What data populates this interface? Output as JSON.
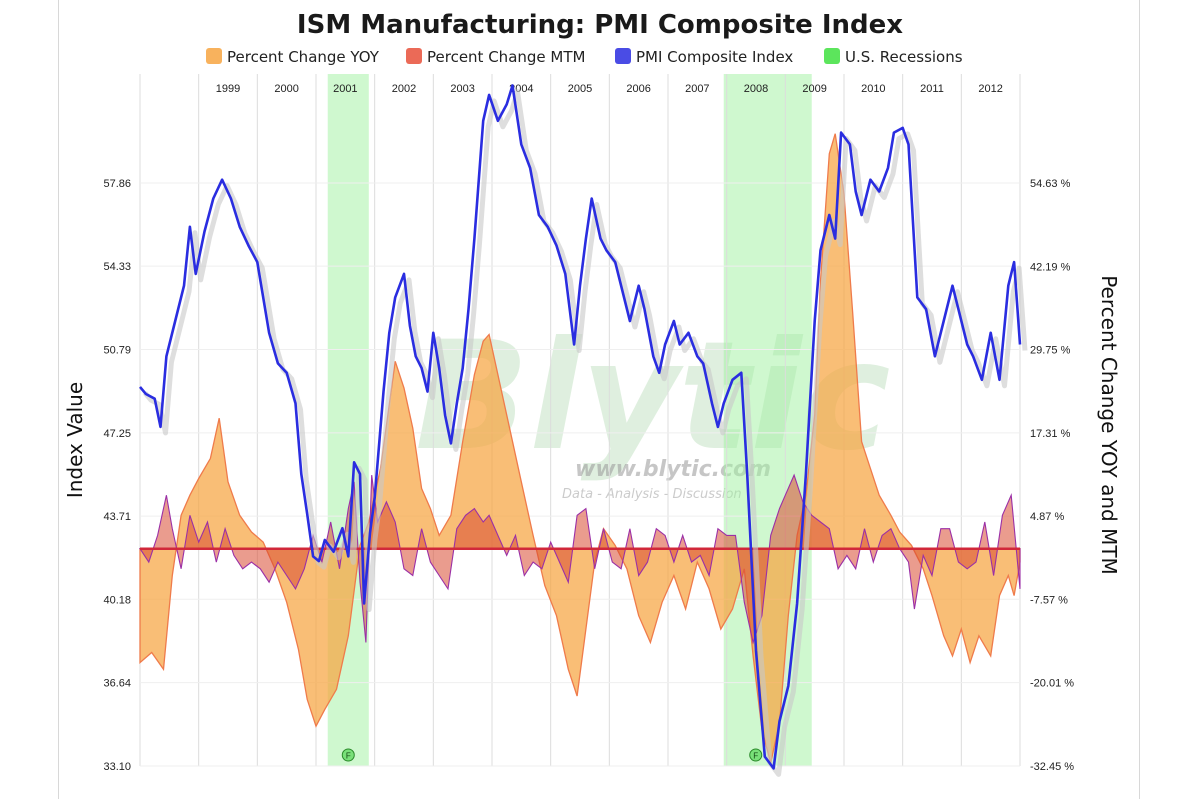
{
  "chart_data": {
    "type": "line",
    "title": "ISM Manufacturing: PMI Composite Index",
    "legend": {
      "placement": "top",
      "entries": [
        {
          "name": "Percent Change YOY",
          "color": "#f7a541"
        },
        {
          "name": "Percent Change MTM",
          "color": "#e8503a"
        },
        {
          "name": "PMI Composite Index",
          "color": "#2a2de0"
        },
        {
          "name": "U.S. Recessions",
          "color": "#40e040"
        }
      ]
    },
    "ylabel_left": "Index Value",
    "ylabel_right": "Percent Change YOY and MTM",
    "y_left_ticks": [
      "57.86",
      "54.33",
      "50.79",
      "47.25",
      "43.71",
      "40.18",
      "36.64",
      "33.10"
    ],
    "y_right_ticks": [
      "54.63 %",
      "42.19 %",
      "29.75 %",
      "17.31 %",
      "4.87 %",
      "-7.57 %",
      "-20.01 %",
      "-32.45 %"
    ],
    "y_left_range": [
      33.1,
      57.86
    ],
    "y_right_range": [
      -32.45,
      54.63
    ],
    "x_range": [
      1998.0,
      2013.0
    ],
    "year_labels": [
      "1999",
      "2000",
      "2001",
      "2002",
      "2003",
      "2004",
      "2005",
      "2006",
      "2007",
      "2008",
      "2009",
      "2010",
      "2011",
      "2012"
    ],
    "grid": true,
    "recessions": [
      {
        "start": 2001.2,
        "end": 2001.9
      },
      {
        "start": 2007.95,
        "end": 2009.45
      }
    ],
    "recession_markers": [
      "F",
      "F"
    ],
    "pmi": [
      [
        1998.0,
        49.2
      ],
      [
        1998.1,
        48.9
      ],
      [
        1998.25,
        48.7
      ],
      [
        1998.35,
        47.5
      ],
      [
        1998.45,
        50.5
      ],
      [
        1998.6,
        52.0
      ],
      [
        1998.75,
        53.5
      ],
      [
        1998.85,
        56.0
      ],
      [
        1998.95,
        54.0
      ],
      [
        1999.1,
        55.8
      ],
      [
        1999.25,
        57.2
      ],
      [
        1999.4,
        58.0
      ],
      [
        1999.55,
        57.2
      ],
      [
        1999.7,
        56.0
      ],
      [
        1999.85,
        55.2
      ],
      [
        2000.0,
        54.5
      ],
      [
        2000.1,
        53.0
      ],
      [
        2000.2,
        51.5
      ],
      [
        2000.35,
        50.2
      ],
      [
        2000.5,
        49.8
      ],
      [
        2000.65,
        48.5
      ],
      [
        2000.75,
        45.5
      ],
      [
        2000.85,
        43.8
      ],
      [
        2000.95,
        42.0
      ],
      [
        2001.05,
        41.8
      ],
      [
        2001.15,
        42.7
      ],
      [
        2001.3,
        42.2
      ],
      [
        2001.45,
        43.2
      ],
      [
        2001.55,
        42.0
      ],
      [
        2001.65,
        46.0
      ],
      [
        2001.75,
        45.5
      ],
      [
        2001.82,
        40.0
      ],
      [
        2001.92,
        43.0
      ],
      [
        2002.0,
        44.5
      ],
      [
        2002.15,
        49.0
      ],
      [
        2002.25,
        51.5
      ],
      [
        2002.35,
        53.0
      ],
      [
        2002.5,
        54.0
      ],
      [
        2002.6,
        51.8
      ],
      [
        2002.7,
        50.5
      ],
      [
        2002.8,
        50.0
      ],
      [
        2002.9,
        49.0
      ],
      [
        2003.0,
        51.5
      ],
      [
        2003.1,
        50.0
      ],
      [
        2003.2,
        48.0
      ],
      [
        2003.3,
        46.8
      ],
      [
        2003.4,
        48.5
      ],
      [
        2003.5,
        50.0
      ],
      [
        2003.6,
        52.5
      ],
      [
        2003.7,
        55.5
      ],
      [
        2003.85,
        60.5
      ],
      [
        2003.95,
        61.6
      ],
      [
        2004.1,
        60.5
      ],
      [
        2004.25,
        61.2
      ],
      [
        2004.35,
        62.0
      ],
      [
        2004.5,
        59.5
      ],
      [
        2004.65,
        58.5
      ],
      [
        2004.8,
        56.5
      ],
      [
        2004.95,
        56.0
      ],
      [
        2005.1,
        55.2
      ],
      [
        2005.25,
        54.0
      ],
      [
        2005.4,
        51.0
      ],
      [
        2005.5,
        53.5
      ],
      [
        2005.6,
        55.5
      ],
      [
        2005.7,
        57.2
      ],
      [
        2005.85,
        55.5
      ],
      [
        2005.95,
        55.0
      ],
      [
        2006.1,
        54.5
      ],
      [
        2006.2,
        53.5
      ],
      [
        2006.35,
        52.0
      ],
      [
        2006.5,
        53.5
      ],
      [
        2006.6,
        52.5
      ],
      [
        2006.75,
        50.5
      ],
      [
        2006.85,
        49.8
      ],
      [
        2006.95,
        51.0
      ],
      [
        2007.1,
        52.0
      ],
      [
        2007.2,
        51.0
      ],
      [
        2007.35,
        51.5
      ],
      [
        2007.5,
        50.5
      ],
      [
        2007.6,
        50.2
      ],
      [
        2007.75,
        48.5
      ],
      [
        2007.85,
        47.5
      ],
      [
        2007.95,
        48.5
      ],
      [
        2008.1,
        49.5
      ],
      [
        2008.25,
        49.8
      ],
      [
        2008.35,
        45.5
      ],
      [
        2008.5,
        38.0
      ],
      [
        2008.65,
        33.5
      ],
      [
        2008.8,
        33.0
      ],
      [
        2008.9,
        35.0
      ],
      [
        2009.05,
        36.5
      ],
      [
        2009.2,
        40.0
      ],
      [
        2009.35,
        45.5
      ],
      [
        2009.5,
        52.0
      ],
      [
        2009.6,
        55.0
      ],
      [
        2009.75,
        56.5
      ],
      [
        2009.85,
        55.5
      ],
      [
        2009.95,
        60.0
      ],
      [
        2010.1,
        59.5
      ],
      [
        2010.2,
        57.5
      ],
      [
        2010.3,
        56.5
      ],
      [
        2010.45,
        58.0
      ],
      [
        2010.6,
        57.5
      ],
      [
        2010.75,
        58.5
      ],
      [
        2010.85,
        60.0
      ],
      [
        2011.0,
        60.2
      ],
      [
        2011.1,
        59.5
      ],
      [
        2011.25,
        53.0
      ],
      [
        2011.4,
        52.5
      ],
      [
        2011.55,
        50.5
      ],
      [
        2011.7,
        52.0
      ],
      [
        2011.85,
        53.5
      ],
      [
        2011.95,
        52.5
      ],
      [
        2012.1,
        51.0
      ],
      [
        2012.2,
        50.5
      ],
      [
        2012.35,
        49.5
      ],
      [
        2012.5,
        51.5
      ],
      [
        2012.65,
        49.5
      ],
      [
        2012.8,
        53.5
      ],
      [
        2012.9,
        54.5
      ],
      [
        2013.0,
        51.0
      ]
    ],
    "yoy": [
      [
        1998.0,
        -17.0
      ],
      [
        1998.2,
        -15.5
      ],
      [
        1998.4,
        -18.0
      ],
      [
        1998.55,
        -4.0
      ],
      [
        1998.7,
        5.0
      ],
      [
        1998.85,
        8.0
      ],
      [
        1999.0,
        10.5
      ],
      [
        1999.2,
        13.5
      ],
      [
        1999.35,
        19.5
      ],
      [
        1999.5,
        10.0
      ],
      [
        1999.7,
        5.0
      ],
      [
        1999.9,
        2.5
      ],
      [
        2000.1,
        1.0
      ],
      [
        2000.3,
        -3.0
      ],
      [
        2000.5,
        -8.0
      ],
      [
        2000.7,
        -15.0
      ],
      [
        2000.85,
        -22.5
      ],
      [
        2001.0,
        -26.5
      ],
      [
        2001.15,
        -24.0
      ],
      [
        2001.35,
        -21.0
      ],
      [
        2001.55,
        -13.0
      ],
      [
        2001.75,
        0.5
      ],
      [
        2001.9,
        4.0
      ],
      [
        2002.1,
        12.0
      ],
      [
        2002.35,
        28.0
      ],
      [
        2002.5,
        24.0
      ],
      [
        2002.65,
        18.0
      ],
      [
        2002.8,
        9.0
      ],
      [
        2002.95,
        6.0
      ],
      [
        2003.1,
        2.0
      ],
      [
        2003.3,
        5.0
      ],
      [
        2003.5,
        16.0
      ],
      [
        2003.7,
        26.0
      ],
      [
        2003.85,
        31.0
      ],
      [
        2003.95,
        32.0
      ],
      [
        2004.1,
        26.0
      ],
      [
        2004.3,
        18.0
      ],
      [
        2004.5,
        10.0
      ],
      [
        2004.7,
        2.0
      ],
      [
        2004.9,
        -5.5
      ],
      [
        2005.1,
        -10.0
      ],
      [
        2005.3,
        -18.0
      ],
      [
        2005.45,
        -22.0
      ],
      [
        2005.6,
        -12.0
      ],
      [
        2005.75,
        -2.0
      ],
      [
        2005.9,
        3.0
      ],
      [
        2006.1,
        0.5
      ],
      [
        2006.3,
        -3.0
      ],
      [
        2006.5,
        -10.0
      ],
      [
        2006.7,
        -14.0
      ],
      [
        2006.9,
        -8.0
      ],
      [
        2007.1,
        -4.0
      ],
      [
        2007.3,
        -9.0
      ],
      [
        2007.5,
        -2.0
      ],
      [
        2007.7,
        -6.0
      ],
      [
        2007.9,
        -12.0
      ],
      [
        2008.1,
        -9.0
      ],
      [
        2008.3,
        -3.0
      ],
      [
        2008.45,
        -16.0
      ],
      [
        2008.6,
        -27.0
      ],
      [
        2008.75,
        -32.0
      ],
      [
        2008.9,
        -26.0
      ],
      [
        2009.05,
        -10.0
      ],
      [
        2009.2,
        2.0
      ],
      [
        2009.35,
        8.0
      ],
      [
        2009.5,
        20.0
      ],
      [
        2009.6,
        40.0
      ],
      [
        2009.75,
        59.0
      ],
      [
        2009.85,
        62.0
      ],
      [
        2010.0,
        53.0
      ],
      [
        2010.15,
        35.0
      ],
      [
        2010.3,
        16.0
      ],
      [
        2010.45,
        12.0
      ],
      [
        2010.6,
        8.0
      ],
      [
        2010.8,
        5.0
      ],
      [
        2010.95,
        2.5
      ],
      [
        2011.15,
        0.5
      ],
      [
        2011.35,
        -3.0
      ],
      [
        2011.5,
        -7.0
      ],
      [
        2011.7,
        -13.0
      ],
      [
        2011.85,
        -16.0
      ],
      [
        2012.0,
        -12.0
      ],
      [
        2012.15,
        -17.0
      ],
      [
        2012.3,
        -13.0
      ],
      [
        2012.5,
        -16.0
      ],
      [
        2012.65,
        -7.0
      ],
      [
        2012.8,
        -4.0
      ],
      [
        2012.9,
        -7.0
      ],
      [
        2013.0,
        -2.0
      ]
    ],
    "mtm": [
      [
        1998.0,
        0.0
      ],
      [
        1998.15,
        -2.0
      ],
      [
        1998.3,
        2.0
      ],
      [
        1998.45,
        8.0
      ],
      [
        1998.55,
        3.0
      ],
      [
        1998.7,
        -3.0
      ],
      [
        1998.85,
        5.0
      ],
      [
        1999.0,
        1.0
      ],
      [
        1999.15,
        4.0
      ],
      [
        1999.3,
        -2.0
      ],
      [
        1999.45,
        3.0
      ],
      [
        1999.6,
        -1.0
      ],
      [
        1999.75,
        -3.0
      ],
      [
        1999.9,
        -2.0
      ],
      [
        2000.05,
        -3.0
      ],
      [
        2000.2,
        -5.0
      ],
      [
        2000.35,
        -2.0
      ],
      [
        2000.5,
        -4.0
      ],
      [
        2000.65,
        -6.0
      ],
      [
        2000.8,
        -3.0
      ],
      [
        2000.95,
        2.0
      ],
      [
        2001.1,
        -2.0
      ],
      [
        2001.25,
        4.0
      ],
      [
        2001.4,
        -3.0
      ],
      [
        2001.55,
        6.0
      ],
      [
        2001.65,
        10.0
      ],
      [
        2001.75,
        -5.0
      ],
      [
        2001.85,
        -14.0
      ],
      [
        2001.95,
        11.0
      ],
      [
        2002.05,
        4.0
      ],
      [
        2002.2,
        7.0
      ],
      [
        2002.35,
        4.0
      ],
      [
        2002.5,
        -3.0
      ],
      [
        2002.65,
        -4.0
      ],
      [
        2002.8,
        3.0
      ],
      [
        2002.95,
        -2.0
      ],
      [
        2003.1,
        -4.0
      ],
      [
        2003.25,
        -6.0
      ],
      [
        2003.4,
        3.0
      ],
      [
        2003.55,
        5.0
      ],
      [
        2003.7,
        6.0
      ],
      [
        2003.85,
        4.0
      ],
      [
        2003.95,
        5.0
      ],
      [
        2004.1,
        2.0
      ],
      [
        2004.25,
        -1.0
      ],
      [
        2004.4,
        2.0
      ],
      [
        2004.55,
        -4.0
      ],
      [
        2004.7,
        -2.0
      ],
      [
        2004.85,
        -3.0
      ],
      [
        2005.0,
        1.0
      ],
      [
        2005.15,
        -2.0
      ],
      [
        2005.3,
        -5.0
      ],
      [
        2005.45,
        5.0
      ],
      [
        2005.6,
        6.0
      ],
      [
        2005.75,
        -3.0
      ],
      [
        2005.9,
        3.0
      ],
      [
        2006.05,
        -2.0
      ],
      [
        2006.2,
        -3.0
      ],
      [
        2006.35,
        3.0
      ],
      [
        2006.5,
        -4.0
      ],
      [
        2006.65,
        -2.0
      ],
      [
        2006.8,
        3.0
      ],
      [
        2006.95,
        2.0
      ],
      [
        2007.1,
        -2.0
      ],
      [
        2007.25,
        2.0
      ],
      [
        2007.4,
        -2.0
      ],
      [
        2007.55,
        -1.0
      ],
      [
        2007.7,
        -4.0
      ],
      [
        2007.85,
        3.0
      ],
      [
        2008.0,
        2.0
      ],
      [
        2008.15,
        2.0
      ],
      [
        2008.3,
        -8.0
      ],
      [
        2008.45,
        -14.0
      ],
      [
        2008.6,
        -10.0
      ],
      [
        2008.75,
        2.0
      ],
      [
        2008.9,
        6.0
      ],
      [
        2009.0,
        8.0
      ],
      [
        2009.15,
        11.0
      ],
      [
        2009.3,
        7.0
      ],
      [
        2009.45,
        5.0
      ],
      [
        2009.6,
        4.0
      ],
      [
        2009.75,
        3.0
      ],
      [
        2009.9,
        -3.0
      ],
      [
        2010.05,
        -1.0
      ],
      [
        2010.2,
        -3.0
      ],
      [
        2010.35,
        3.0
      ],
      [
        2010.5,
        -2.0
      ],
      [
        2010.65,
        2.0
      ],
      [
        2010.8,
        3.0
      ],
      [
        2010.95,
        0.0
      ],
      [
        2011.1,
        -2.0
      ],
      [
        2011.2,
        -9.0
      ],
      [
        2011.35,
        -1.0
      ],
      [
        2011.5,
        -4.0
      ],
      [
        2011.65,
        3.0
      ],
      [
        2011.8,
        3.0
      ],
      [
        2011.95,
        -2.0
      ],
      [
        2012.1,
        -3.0
      ],
      [
        2012.25,
        -2.0
      ],
      [
        2012.4,
        4.0
      ],
      [
        2012.55,
        -4.0
      ],
      [
        2012.7,
        5.0
      ],
      [
        2012.85,
        8.0
      ],
      [
        2013.0,
        -6.0
      ]
    ],
    "watermark": {
      "brand": "Blytic",
      "url": "www.blytic.com",
      "tagline": "Data - Analysis - Discussion"
    }
  }
}
